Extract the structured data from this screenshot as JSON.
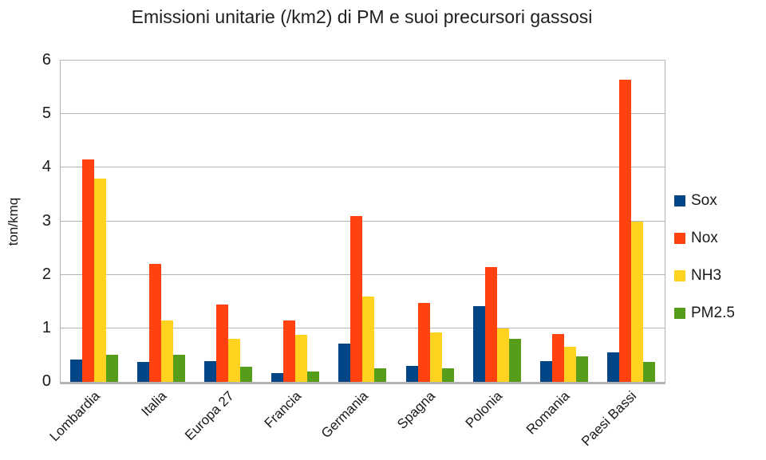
{
  "title": "Emissioni unitarie (/km2) di PM e suoi precursori gassosi",
  "chart_data": {
    "type": "bar",
    "title": "Emissioni unitarie (/km2) di PM e suoi precursori gassosi",
    "xlabel": "",
    "ylabel": "ton/kmq",
    "ylim": [
      0,
      6
    ],
    "yticks": [
      0,
      1,
      2,
      3,
      4,
      5,
      6
    ],
    "grid": true,
    "legend_position": "right",
    "categories": [
      "Lombardia",
      "Italia",
      "Europa 27",
      "Francia",
      "Germania",
      "Spagna",
      "Polonia",
      "Romania",
      "Paesi Bassi"
    ],
    "series": [
      {
        "name": "Sox",
        "color": "#004586",
        "values": [
          0.42,
          0.37,
          0.38,
          0.16,
          0.72,
          0.3,
          1.42,
          0.38,
          0.55
        ]
      },
      {
        "name": "Nox",
        "color": "#FF420E",
        "values": [
          4.15,
          2.2,
          1.45,
          1.15,
          3.1,
          1.47,
          2.15,
          0.9,
          5.65
        ]
      },
      {
        "name": "NH3",
        "color": "#FFD320",
        "values": [
          3.8,
          1.15,
          0.81,
          0.88,
          1.6,
          0.92,
          1.0,
          0.66,
          3.0
        ]
      },
      {
        "name": "PM2.5",
        "color": "#579D1C",
        "values": [
          0.51,
          0.5,
          0.29,
          0.19,
          0.25,
          0.26,
          0.81,
          0.47,
          0.37
        ]
      }
    ],
    "colors": {
      "grid": "#b3b3b3",
      "axis": "#b3b3b3",
      "text": "#1a1a1a"
    }
  }
}
